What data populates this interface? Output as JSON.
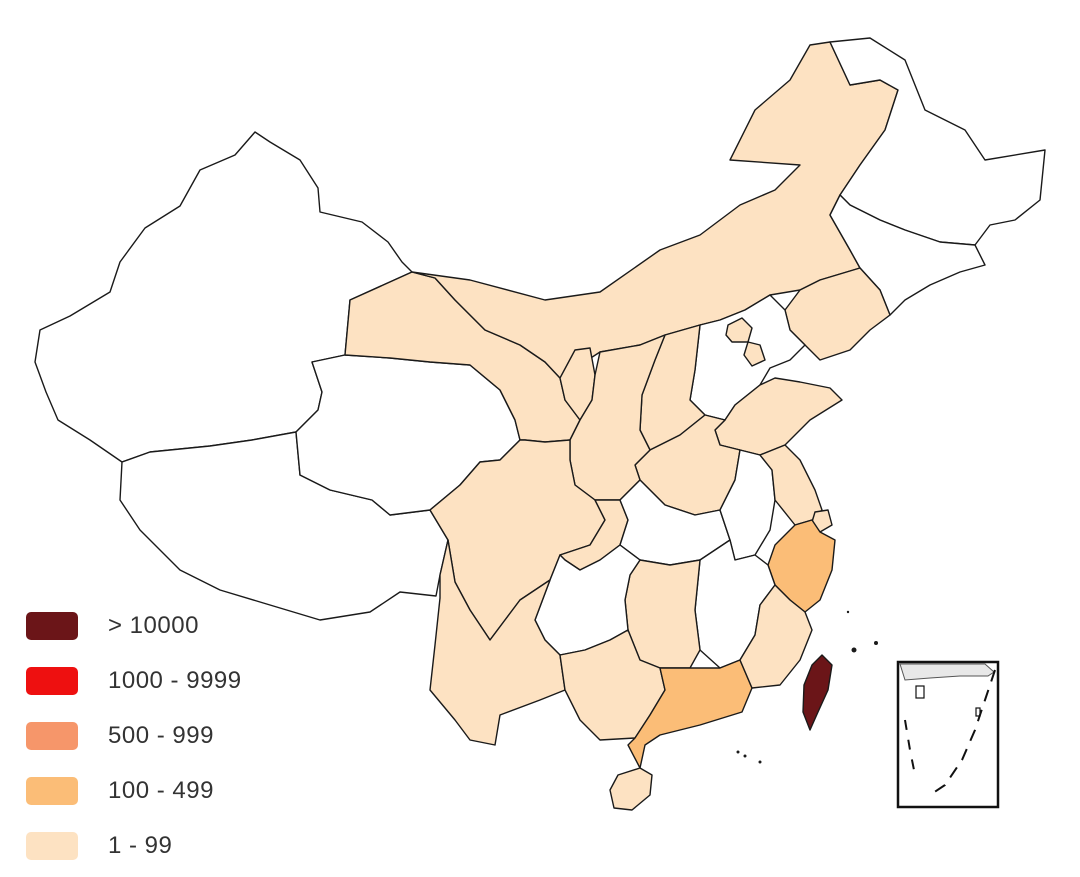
{
  "colors": {
    "none": "#ffffff",
    "low": "#fde2c2",
    "mid": "#fbbd77",
    "high": "#f6966a",
    "veryhigh": "#ee1010",
    "extreme": "#6b1518"
  },
  "legend": [
    {
      "label": "> 10000",
      "color": "#6b1518"
    },
    {
      "label": "1000 - 9999",
      "color": "#ee1010"
    },
    {
      "label": "500 - 999",
      "color": "#f6966a"
    },
    {
      "label": "100 - 499",
      "color": "#fbbd77"
    },
    {
      "label": "1 - 99",
      "color": "#fde2c2"
    }
  ],
  "regions": [
    {
      "id": "xinjiang",
      "cls": "none"
    },
    {
      "id": "tibet",
      "cls": "none"
    },
    {
      "id": "qinghai",
      "cls": "none"
    },
    {
      "id": "gansu",
      "cls": "low"
    },
    {
      "id": "inner-mongolia",
      "cls": "low"
    },
    {
      "id": "heilongjiang",
      "cls": "none"
    },
    {
      "id": "jilin",
      "cls": "none"
    },
    {
      "id": "liaoning",
      "cls": "low"
    },
    {
      "id": "hebei",
      "cls": "none"
    },
    {
      "id": "beijing",
      "cls": "low"
    },
    {
      "id": "tianjin",
      "cls": "low"
    },
    {
      "id": "shanxi",
      "cls": "low"
    },
    {
      "id": "shandong",
      "cls": "low"
    },
    {
      "id": "henan",
      "cls": "low"
    },
    {
      "id": "ningxia",
      "cls": "low"
    },
    {
      "id": "shaanxi",
      "cls": "low"
    },
    {
      "id": "sichuan",
      "cls": "low"
    },
    {
      "id": "chongqing",
      "cls": "low"
    },
    {
      "id": "hubei",
      "cls": "none"
    },
    {
      "id": "anhui",
      "cls": "none"
    },
    {
      "id": "jiangsu",
      "cls": "low"
    },
    {
      "id": "shanghai",
      "cls": "low"
    },
    {
      "id": "zhejiang",
      "cls": "mid"
    },
    {
      "id": "jiangxi",
      "cls": "none"
    },
    {
      "id": "hunan",
      "cls": "low"
    },
    {
      "id": "guizhou",
      "cls": "none"
    },
    {
      "id": "yunnan",
      "cls": "low"
    },
    {
      "id": "guangxi",
      "cls": "low"
    },
    {
      "id": "guangdong",
      "cls": "mid"
    },
    {
      "id": "fujian",
      "cls": "low"
    },
    {
      "id": "hainan",
      "cls": "low"
    },
    {
      "id": "taiwan",
      "cls": "extreme"
    }
  ]
}
